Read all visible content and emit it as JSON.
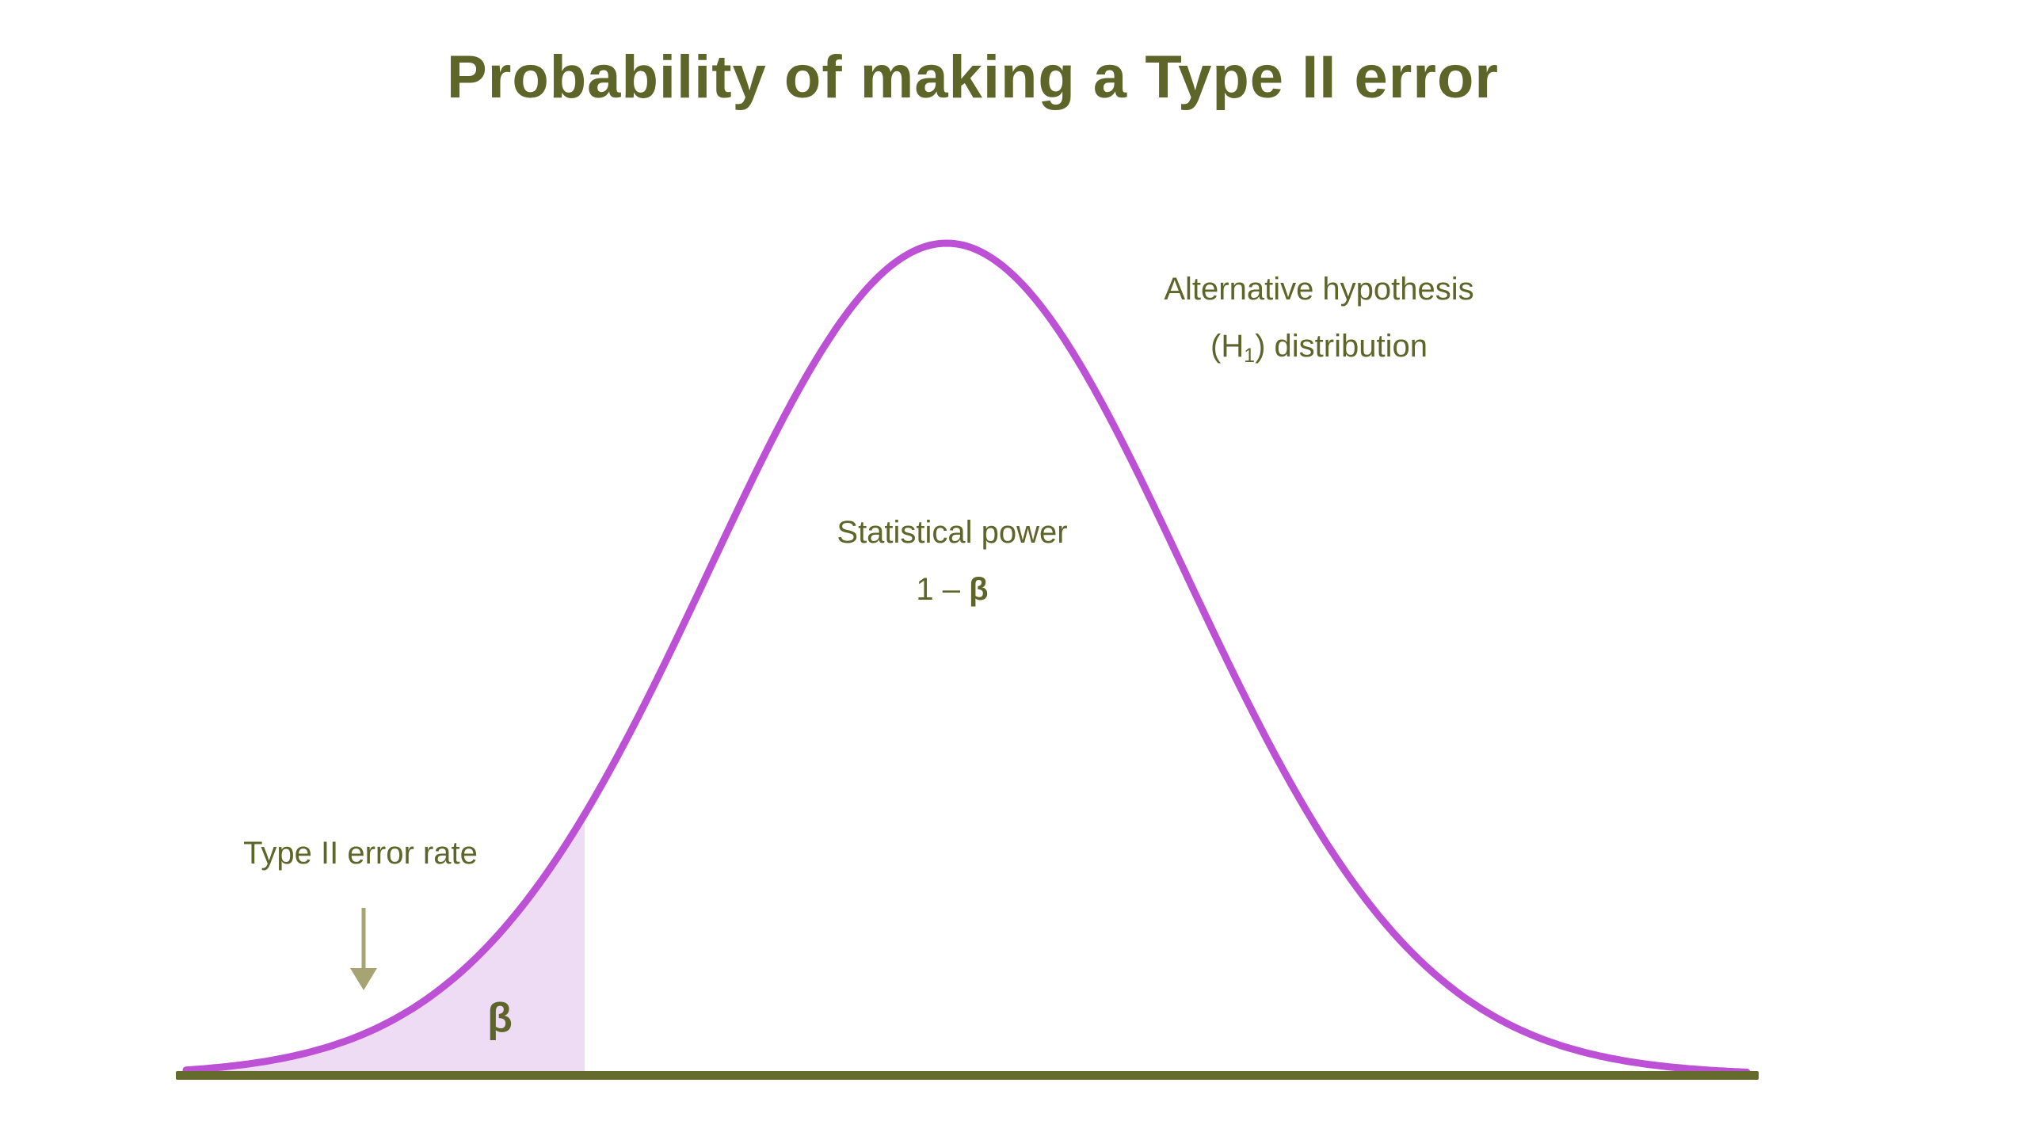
{
  "title": "Probability of making a Type II error",
  "labels": {
    "alt_line1": "Alternative hypothesis",
    "alt_h_open": "(H",
    "alt_h_sub": "1",
    "alt_h_rest": ") distribution",
    "power_line1": "Statistical power",
    "power_prefix": "1 – ",
    "power_beta": "β",
    "type2_label": "Type II error rate",
    "beta_region_symbol": "β"
  },
  "colors": {
    "text": "#5d6529",
    "curve": "#bc51d5",
    "region_fill": "#eedbf4",
    "baseline": "#656b2c",
    "arrow": "#a6a472",
    "background": "#ffffff"
  },
  "figure": {
    "type": "curve",
    "curve": "normal distribution bell curve",
    "curve_label": "Alternative hypothesis (H1) distribution",
    "shaded_region": "left tail under curve left of decision threshold",
    "shaded_region_label": "β (Type II error rate)",
    "area_right_of_threshold_label": "Statistical power 1 – β",
    "axes": "single horizontal baseline, no ticks or numeric labels"
  }
}
